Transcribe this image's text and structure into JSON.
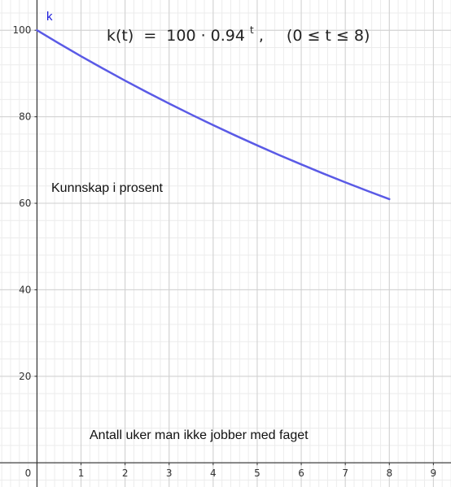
{
  "chart_data": {
    "type": "line",
    "function_name": "k",
    "formula": {
      "lhs": "k(t)",
      "eq": "=",
      "base_expr": "100 · 0.94",
      "exponent": "t",
      "sep": ",",
      "domain": "(0 ≤ t ≤ 8)"
    },
    "ylabel": "Kunnskap i prosent",
    "xlabel": "Antall uker man ikke jobber med faget",
    "xlim": [
      -0.84,
      9.4
    ],
    "ylim": [
      -5.6,
      107
    ],
    "x_ticks": [
      0,
      1,
      2,
      3,
      4,
      5,
      6,
      7,
      8,
      9
    ],
    "y_ticks": [
      20,
      40,
      60,
      80,
      100
    ],
    "origin_label": "0",
    "grid": true,
    "minor_grid_step": 0.2,
    "x": [
      0,
      0.5,
      1,
      1.5,
      2,
      2.5,
      3,
      3.5,
      4,
      4.5,
      5,
      5.5,
      6,
      6.5,
      7,
      7.5,
      8
    ],
    "series": [
      {
        "values": [
          100,
          96.95,
          94.0,
          91.14,
          88.36,
          85.67,
          83.06,
          80.53,
          78.07,
          75.69,
          73.39,
          71.15,
          68.99,
          66.88,
          64.85,
          62.87,
          60.96
        ],
        "color": "#5a5ae6"
      }
    ]
  }
}
